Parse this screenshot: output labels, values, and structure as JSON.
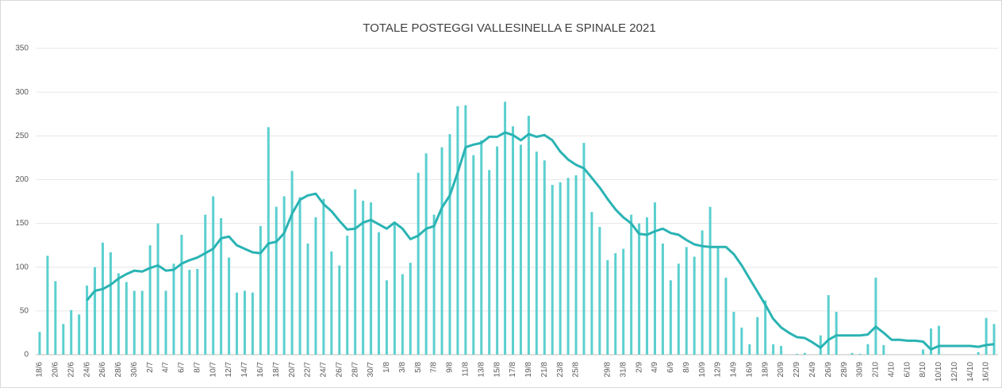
{
  "chart_data": {
    "type": "bar",
    "title": "TOTALE POSTEGGI VALLESINELLA E SPINALE 2021",
    "categories": [
      "18/6",
      null,
      "20/6",
      null,
      "22/6",
      null,
      "24/6",
      null,
      "26/6",
      null,
      "28/6",
      null,
      "30/6",
      null,
      "2/7",
      null,
      "4/7",
      null,
      "6/7",
      null,
      "8/7",
      null,
      "10/7",
      null,
      "12/7",
      null,
      "14/7",
      null,
      "16/7",
      null,
      "18/7",
      null,
      "20/7",
      null,
      "22/7",
      null,
      "24/7",
      null,
      "26/7",
      null,
      "28/7",
      null,
      "30/7",
      null,
      "1/8",
      null,
      "3/8",
      null,
      "5/8",
      null,
      "7/8",
      null,
      "9/8",
      null,
      "11/8",
      null,
      "13/8",
      null,
      "15/8",
      null,
      "17/8",
      null,
      "19/8",
      null,
      "21/8",
      null,
      "23/8",
      null,
      "25/8",
      null,
      null,
      null,
      "29/8",
      null,
      "31/8",
      null,
      "2/9",
      null,
      "4/9",
      null,
      "6/9",
      null,
      "8/9",
      null,
      "10/9",
      null,
      "12/9",
      null,
      "14/9",
      null,
      "16/9",
      null,
      "18/9",
      null,
      "20/9",
      null,
      "22/9",
      null,
      "24/9",
      null,
      "26/9",
      null,
      "28/9",
      null,
      "30/9",
      null,
      "2/10",
      null,
      "4/10",
      null,
      "6/10",
      null,
      "8/10",
      null,
      "10/10",
      null,
      "12/10",
      null,
      "14/10",
      null,
      "16/10",
      null
    ],
    "series": [
      {
        "type": "bar",
        "color": "#5ccfcf",
        "values": [
          26,
          113,
          84,
          35,
          51,
          46,
          79,
          100,
          128,
          117,
          93,
          83,
          73,
          73,
          125,
          150,
          73,
          104,
          137,
          97,
          98,
          160,
          181,
          156,
          111,
          71,
          73,
          71,
          147,
          260,
          169,
          181,
          210,
          180,
          127,
          157,
          178,
          118,
          102,
          136,
          189,
          176,
          174,
          140,
          85,
          150,
          92,
          105,
          208,
          230,
          160,
          237,
          252,
          284,
          285,
          228,
          245,
          211,
          238,
          289,
          261,
          240,
          273,
          232,
          222,
          194,
          197,
          202,
          205,
          242,
          163,
          146,
          108,
          116,
          121,
          160,
          150,
          157,
          174,
          127,
          85,
          104,
          123,
          112,
          142,
          169,
          123,
          88,
          49,
          31,
          12,
          43,
          62,
          12,
          10,
          0,
          1,
          2,
          0,
          22,
          68,
          49,
          0,
          2,
          1,
          12,
          88,
          11,
          0,
          0,
          0,
          0,
          6,
          30,
          33,
          0,
          0,
          0,
          0,
          3,
          42,
          35
        ]
      },
      {
        "type": "line",
        "color": "#2ab3b3",
        "values": [
          null,
          null,
          null,
          null,
          null,
          null,
          62,
          73,
          75,
          80,
          87,
          92,
          96,
          95,
          99,
          102,
          96,
          97,
          104,
          108,
          111,
          116,
          121,
          133,
          135,
          125,
          121,
          117,
          116,
          127,
          129,
          139,
          161,
          177,
          182,
          184,
          172,
          164,
          153,
          143,
          144,
          151,
          154,
          149,
          144,
          151,
          144,
          132,
          136,
          144,
          147,
          168,
          182,
          208,
          237,
          240,
          242,
          249,
          249,
          254,
          251,
          245,
          252,
          249,
          251,
          245,
          232,
          223,
          217,
          213,
          202,
          191,
          178,
          166,
          157,
          150,
          138,
          137,
          141,
          144,
          139,
          137,
          131,
          126,
          124,
          123,
          123,
          123,
          115,
          102,
          87,
          72,
          57,
          41,
          31,
          25,
          20,
          19,
          14,
          8,
          17,
          22,
          22,
          22,
          22,
          23,
          32,
          25,
          17,
          17,
          16,
          16,
          15,
          6,
          10,
          10,
          10,
          10,
          10,
          9,
          11,
          12
        ]
      }
    ],
    "ylim": [
      0,
      350
    ],
    "yticks": [
      0,
      50,
      100,
      150,
      200,
      250,
      300,
      350
    ],
    "grid": true
  }
}
